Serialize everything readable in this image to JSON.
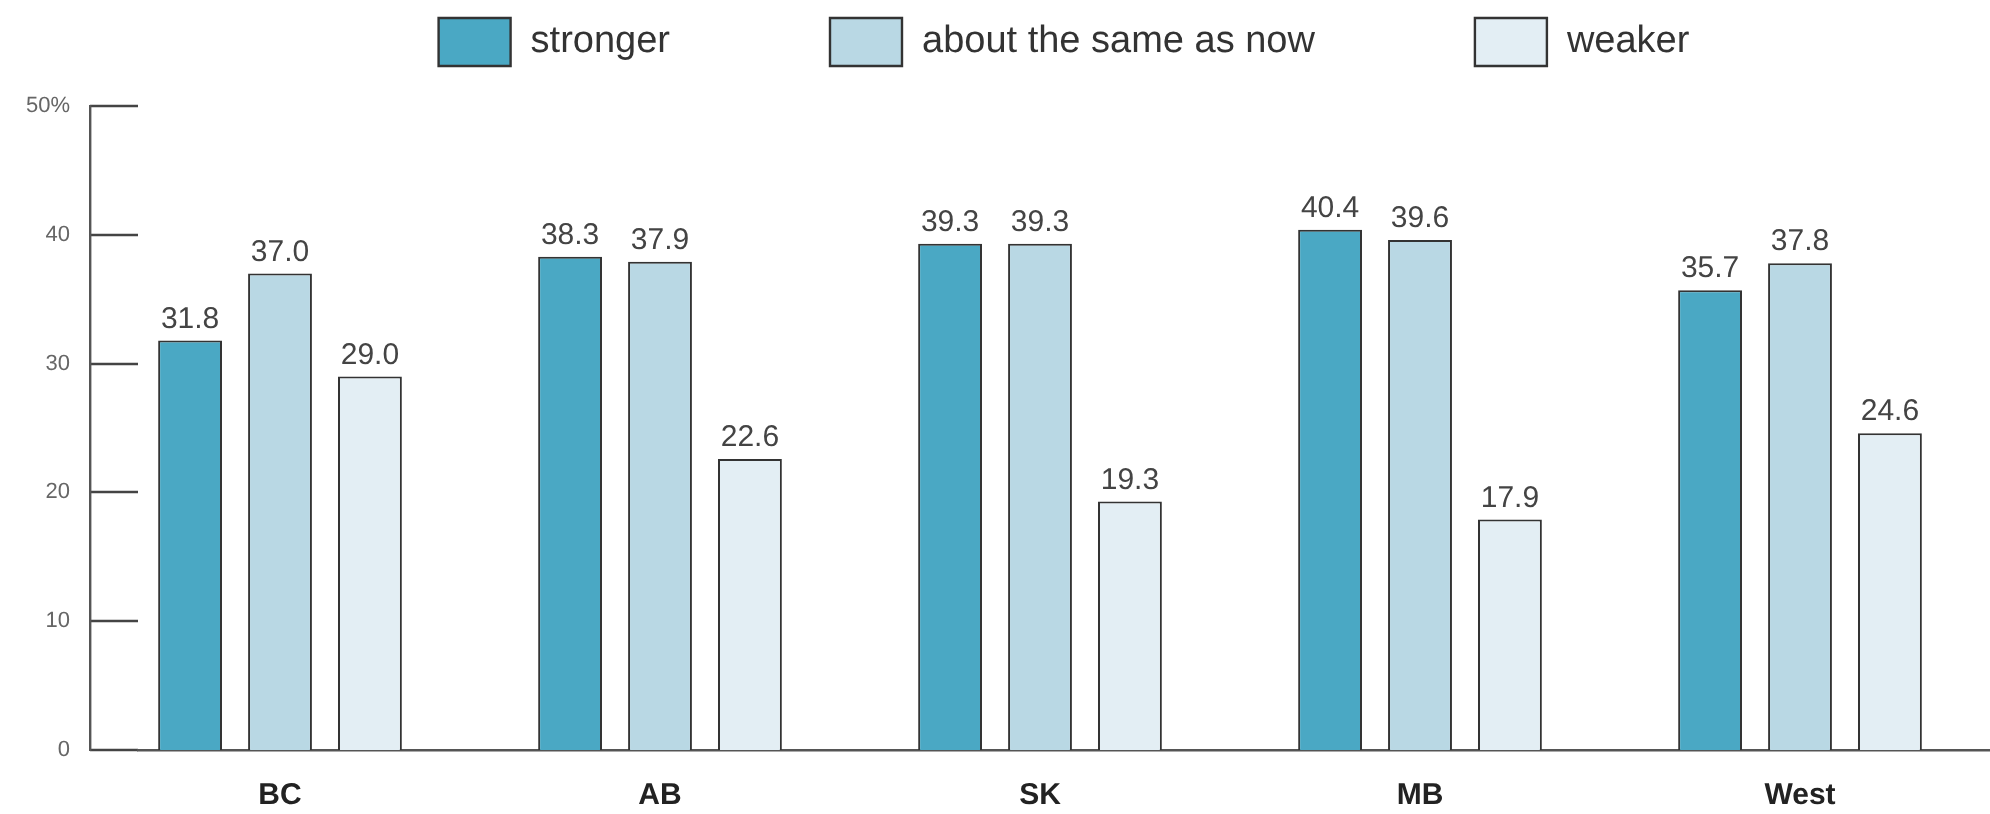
{
  "chart_data": {
    "type": "bar",
    "categories": [
      "BC",
      "AB",
      "SK",
      "MB",
      "West"
    ],
    "series": [
      {
        "name": "stronger",
        "color": "#4aa8c4",
        "values": [
          31.8,
          38.3,
          39.3,
          40.4,
          35.7
        ],
        "value_labels": [
          "31.8",
          "38.3",
          "39.3",
          "40.4",
          "35.7"
        ]
      },
      {
        "name": "about the same as now",
        "color": "#b9d8e4",
        "values": [
          37.0,
          37.9,
          39.3,
          39.6,
          37.8
        ],
        "value_labels": [
          "37.0",
          "37.9",
          "39.3",
          "39.6",
          "37.8"
        ]
      },
      {
        "name": "weaker",
        "color": "#e3eef4",
        "values": [
          29.0,
          22.6,
          19.3,
          17.9,
          24.6
        ],
        "value_labels": [
          "29.0",
          "22.6",
          "19.3",
          "17.9",
          "24.6"
        ]
      }
    ],
    "ylim": [
      0,
      50
    ],
    "yticks": [
      0,
      10,
      20,
      30,
      40,
      {
        "value": 50,
        "label": "50%"
      }
    ],
    "legend": "top"
  }
}
